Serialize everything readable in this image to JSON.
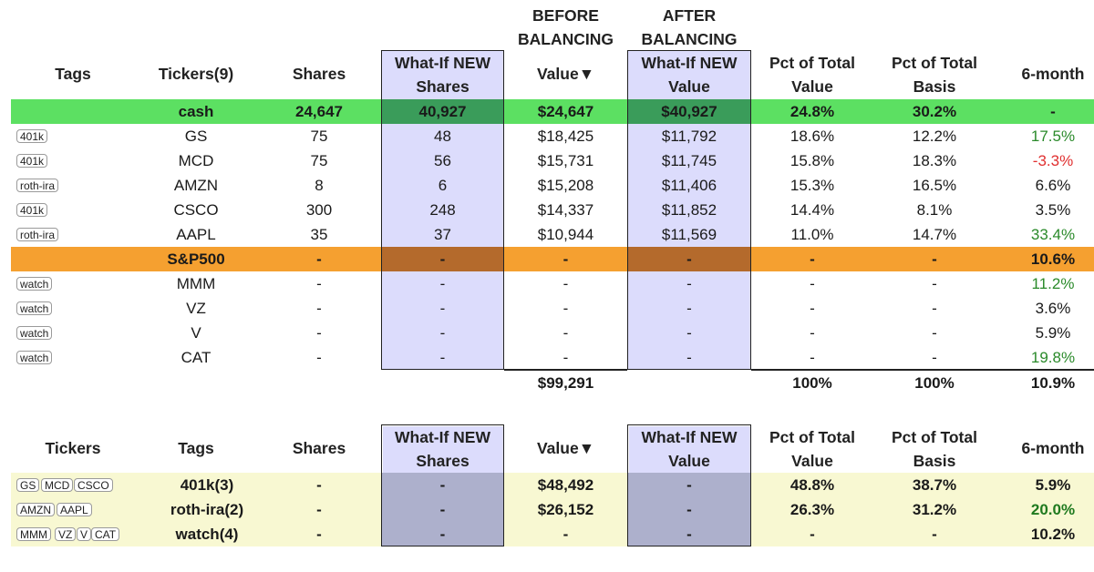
{
  "top_header": {
    "tags": "Tags",
    "tickers": "Tickers(9)",
    "shares": "Shares",
    "whatif_shares_1": "What-If NEW",
    "whatif_shares_2": "Shares",
    "before_1": "BEFORE",
    "before_2": "BALANCING",
    "value": "Value▼",
    "after_1": "AFTER",
    "after_2": "BALANCING",
    "whatif_value_1": "What-If NEW",
    "whatif_value_2": "Value",
    "pct_value_1": "Pct of Total",
    "pct_value_2": "Value",
    "pct_basis_1": "Pct of Total",
    "pct_basis_2": "Basis",
    "six_month": "6-month"
  },
  "cash_row": {
    "ticker": "cash",
    "shares": "24,647",
    "whatif_shares": "40,927",
    "value": "$24,647",
    "whatif_value": "$40,927",
    "pct_value": "24.8%",
    "pct_basis": "30.2%",
    "six_month": "-"
  },
  "holdings": [
    {
      "tag": "401k",
      "ticker": "GS",
      "shares": "75",
      "whatif_shares": "48",
      "value": "$18,425",
      "whatif_value": "$11,792",
      "pct_value": "18.6%",
      "pct_basis": "12.2%",
      "six_month": "17.5%"
    },
    {
      "tag": "401k",
      "ticker": "MCD",
      "shares": "75",
      "whatif_shares": "56",
      "value": "$15,731",
      "whatif_value": "$11,745",
      "pct_value": "15.8%",
      "pct_basis": "18.3%",
      "six_month": "-3.3%"
    },
    {
      "tag": "roth-ira",
      "ticker": "AMZN",
      "shares": "8",
      "whatif_shares": "6",
      "value": "$15,208",
      "whatif_value": "$11,406",
      "pct_value": "15.3%",
      "pct_basis": "16.5%",
      "six_month": "6.6%"
    },
    {
      "tag": "401k",
      "ticker": "CSCO",
      "shares": "300",
      "whatif_shares": "248",
      "value": "$14,337",
      "whatif_value": "$11,852",
      "pct_value": "14.4%",
      "pct_basis": "8.1%",
      "six_month": "3.5%"
    },
    {
      "tag": "roth-ira",
      "ticker": "AAPL",
      "shares": "35",
      "whatif_shares": "37",
      "value": "$10,944",
      "whatif_value": "$11,569",
      "pct_value": "11.0%",
      "pct_basis": "14.7%",
      "six_month": "33.4%"
    }
  ],
  "sp_row": {
    "ticker": "S&P500",
    "shares": "-",
    "whatif_shares": "-",
    "value": "-",
    "whatif_value": "-",
    "pct_value": "-",
    "pct_basis": "-",
    "six_month": "10.6%"
  },
  "watch": [
    {
      "tag": "watch",
      "ticker": "MMM",
      "shares": "-",
      "whatif_shares": "-",
      "value": "-",
      "whatif_value": "-",
      "pct_value": "-",
      "pct_basis": "-",
      "six_month": "11.2%"
    },
    {
      "tag": "watch",
      "ticker": "VZ",
      "shares": "-",
      "whatif_shares": "-",
      "value": "-",
      "whatif_value": "-",
      "pct_value": "-",
      "pct_basis": "-",
      "six_month": "3.6%"
    },
    {
      "tag": "watch",
      "ticker": "V",
      "shares": "-",
      "whatif_shares": "-",
      "value": "-",
      "whatif_value": "-",
      "pct_value": "-",
      "pct_basis": "-",
      "six_month": "5.9%"
    },
    {
      "tag": "watch",
      "ticker": "CAT",
      "shares": "-",
      "whatif_shares": "-",
      "value": "-",
      "whatif_value": "-",
      "pct_value": "-",
      "pct_basis": "-",
      "six_month": "19.8%"
    }
  ],
  "totals": {
    "value": "$99,291",
    "pct_value": "100%",
    "pct_basis": "100%",
    "six_month": "10.9%"
  },
  "bottom_header": {
    "tickers": "Tickers",
    "tags": "Tags",
    "shares": "Shares",
    "whatif_shares_1": "What-If NEW",
    "whatif_shares_2": "Shares",
    "value": "Value▼",
    "whatif_value_1": "What-If NEW",
    "whatif_value_2": "Value",
    "pct_value_1": "Pct of Total",
    "pct_value_2": "Value",
    "pct_basis_1": "Pct of Total",
    "pct_basis_2": "Basis",
    "six_month": "6-month"
  },
  "groups": [
    {
      "tickers": [
        "GS",
        "MCD",
        "CSCO"
      ],
      "tag": "401k(3)",
      "shares": "-",
      "whatif_shares": "-",
      "value": "$48,492",
      "whatif_value": "-",
      "pct_value": "48.8%",
      "pct_basis": "38.7%",
      "six_month": "5.9%"
    },
    {
      "tickers": [
        "AMZN",
        "AAPL"
      ],
      "tag": "roth-ira(2)",
      "shares": "-",
      "whatif_shares": "-",
      "value": "$26,152",
      "whatif_value": "-",
      "pct_value": "26.3%",
      "pct_basis": "31.2%",
      "six_month": "20.0%"
    },
    {
      "tickers": [
        "MMM",
        "VZ",
        "V",
        "CAT"
      ],
      "tag": "watch(4)",
      "shares": "-",
      "whatif_shares": "-",
      "value": "-",
      "whatif_value": "-",
      "pct_value": "-",
      "pct_basis": "-",
      "six_month": "10.2%"
    }
  ],
  "colors": {
    "cash_row": "#5ce062",
    "cash_whatif": "#3a9c5a",
    "sp_row": "#f5a030",
    "sp_whatif": "#b46a2c",
    "whatif_col": "#dcdcfc",
    "group_row": "#f8f8d2",
    "group_whatif": "#adb0cc",
    "positive": "#2a8a2a",
    "negative": "#e03030"
  }
}
